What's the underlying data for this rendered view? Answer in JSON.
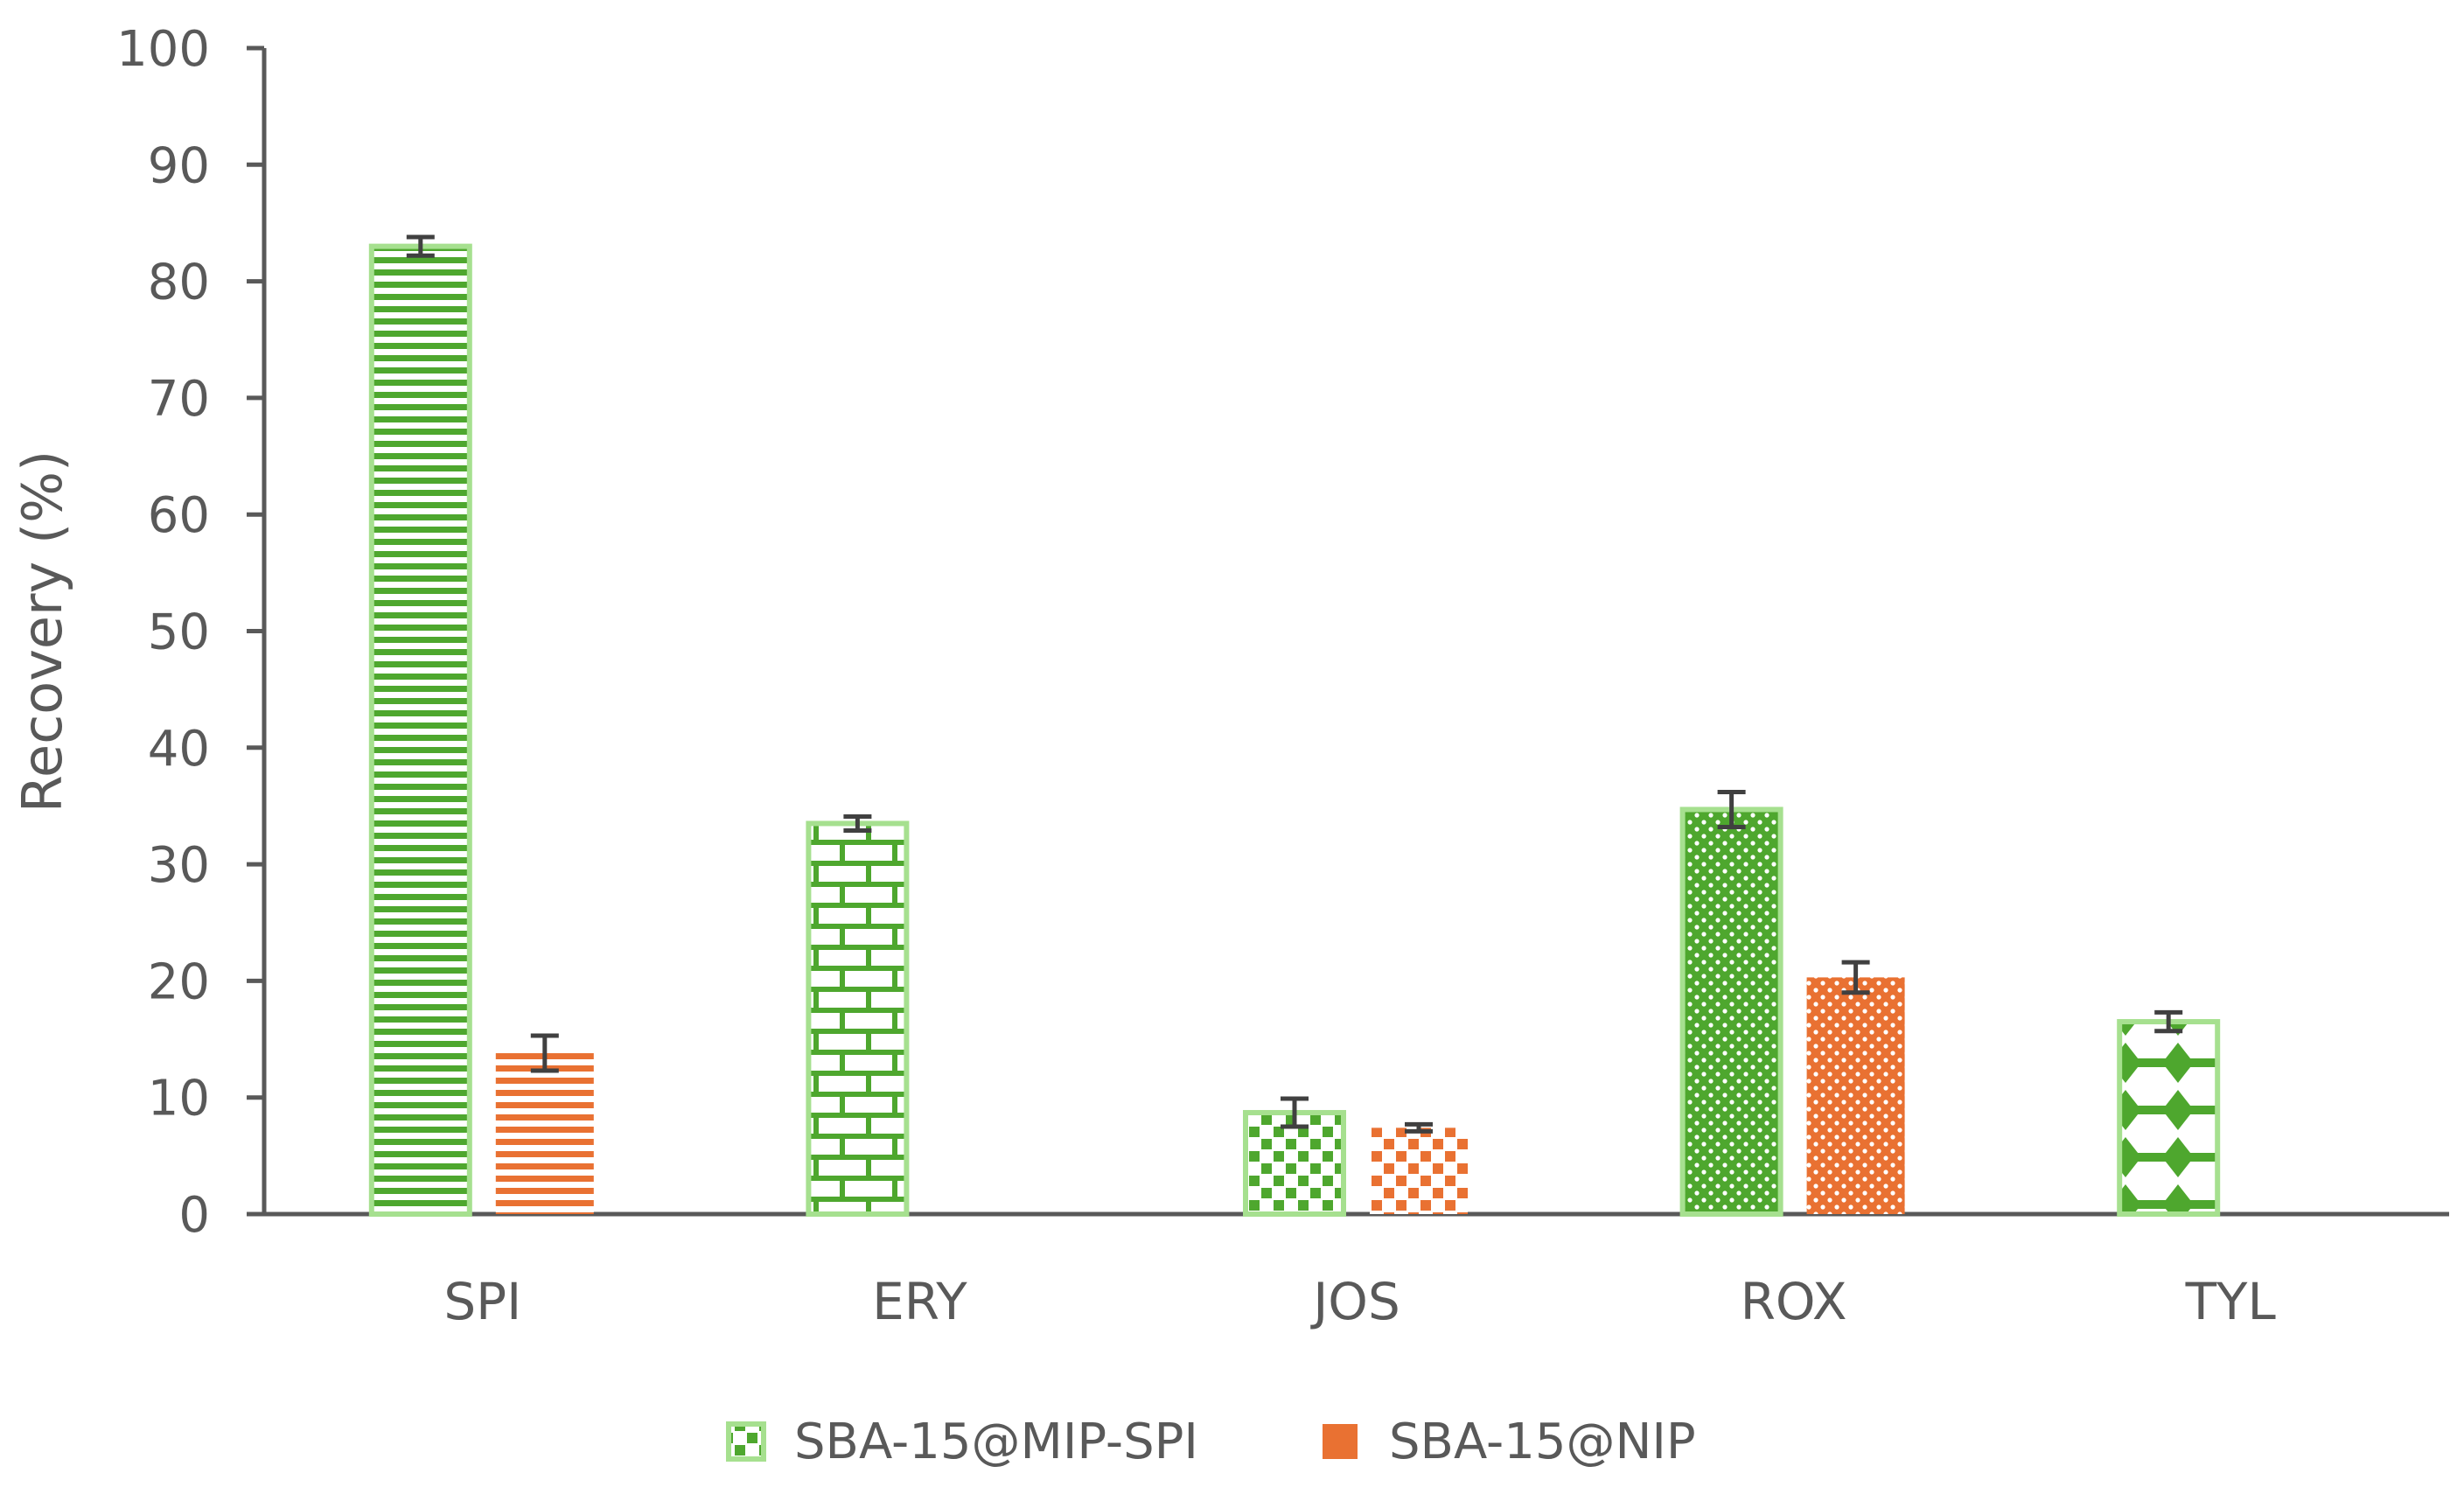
{
  "chart_data": {
    "type": "bar",
    "categories": [
      "SPI",
      "ERY",
      "JOS",
      "ROX",
      "TYL"
    ],
    "ylabel": "Recovery (%)",
    "xlabel": "",
    "ylim": [
      0,
      100
    ],
    "yticks": [
      0,
      10,
      20,
      30,
      40,
      50,
      60,
      70,
      80,
      90,
      100
    ],
    "legend_position": "bottom",
    "colors": {
      "mip": "#4ea72e",
      "nip": "#e97132",
      "mip_border": "#a6e08f",
      "axis": "#595959",
      "error": "#404040"
    },
    "series": [
      {
        "name": "SBA-15@MIP-SPI",
        "values": [
          83,
          33.5,
          8.7,
          34.7,
          16.5
        ],
        "errors": [
          0.8,
          0.6,
          1.2,
          1.5,
          0.8
        ],
        "patterns": [
          "horizontal-lines",
          "bricks",
          "checks",
          "dots",
          "diamonds"
        ]
      },
      {
        "name": "SBA-15@NIP",
        "values": [
          13.8,
          null,
          7.4,
          20.3,
          null
        ],
        "errors": [
          1.5,
          null,
          0.3,
          1.3,
          null
        ],
        "patterns": [
          "horizontal-lines",
          null,
          "checks",
          "dots",
          null
        ]
      }
    ]
  }
}
